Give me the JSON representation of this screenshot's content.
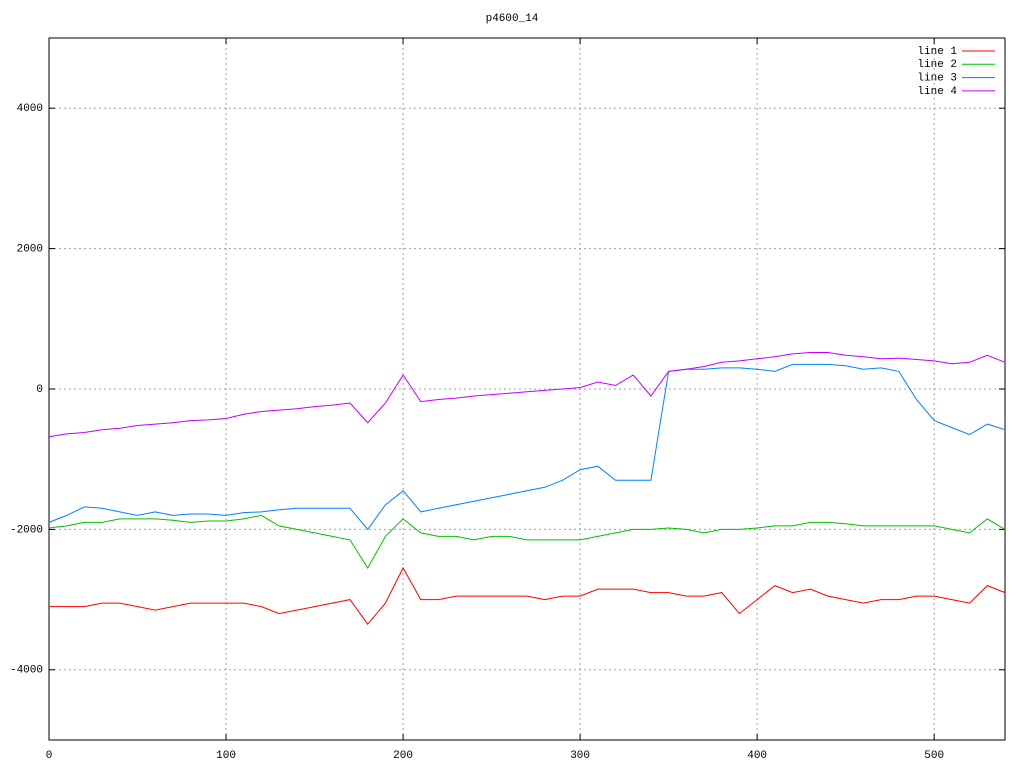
{
  "chart_data": {
    "type": "line",
    "title": "p4600_14",
    "x": [
      0,
      10,
      20,
      30,
      40,
      50,
      60,
      70,
      80,
      90,
      100,
      110,
      120,
      130,
      140,
      150,
      160,
      170,
      180,
      190,
      200,
      210,
      220,
      230,
      240,
      250,
      260,
      270,
      280,
      290,
      300,
      310,
      320,
      330,
      340,
      350,
      360,
      370,
      380,
      390,
      400,
      410,
      420,
      430,
      440,
      450,
      460,
      470,
      480,
      490,
      500,
      510,
      520,
      530,
      540
    ],
    "series": [
      {
        "name": "line 1",
        "color": "#ff0000",
        "values": [
          -3100,
          -3100,
          -3100,
          -3050,
          -3050,
          -3100,
          -3150,
          -3100,
          -3050,
          -3050,
          -3050,
          -3050,
          -3100,
          -3200,
          -3150,
          -3100,
          -3050,
          -3000,
          -3350,
          -3050,
          -2550,
          -3000,
          -3000,
          -2950,
          -2950,
          -2950,
          -2950,
          -2950,
          -3000,
          -2950,
          -2950,
          -2850,
          -2850,
          -2850,
          -2900,
          -2900,
          -2950,
          -2950,
          -2900,
          -3200,
          -3000,
          -2800,
          -2900,
          -2850,
          -2950,
          -3000,
          -3050,
          -3000,
          -3000,
          -2950,
          -2950,
          -3000,
          -3050,
          -2800,
          -2900
        ]
      },
      {
        "name": "line 2",
        "color": "#00c000",
        "values": [
          -1980,
          -1950,
          -1900,
          -1900,
          -1850,
          -1850,
          -1850,
          -1870,
          -1900,
          -1880,
          -1880,
          -1850,
          -1800,
          -1950,
          -2000,
          -2050,
          -2100,
          -2150,
          -2550,
          -2100,
          -1850,
          -2050,
          -2100,
          -2100,
          -2150,
          -2100,
          -2100,
          -2150,
          -2150,
          -2150,
          -2150,
          -2100,
          -2050,
          -2000,
          -2000,
          -1980,
          -2000,
          -2050,
          -2000,
          -2000,
          -1980,
          -1950,
          -1950,
          -1900,
          -1900,
          -1920,
          -1950,
          -1950,
          -1950,
          -1950,
          -1950,
          -2000,
          -2050,
          -1850,
          -2000
        ]
      },
      {
        "name": "line 3",
        "color": "#0080ff",
        "values": [
          -1900,
          -1800,
          -1680,
          -1700,
          -1750,
          -1800,
          -1750,
          -1800,
          -1780,
          -1780,
          -1800,
          -1760,
          -1750,
          -1720,
          -1700,
          -1700,
          -1700,
          -1700,
          -2000,
          -1650,
          -1450,
          -1750,
          -1700,
          -1650,
          -1600,
          -1550,
          -1500,
          -1450,
          -1400,
          -1300,
          -1150,
          -1100,
          -1300,
          -1300,
          -1300,
          250,
          280,
          280,
          300,
          300,
          280,
          250,
          350,
          350,
          350,
          330,
          280,
          300,
          250,
          -150,
          -450,
          -550,
          -650,
          -500,
          -580
        ]
      },
      {
        "name": "line 4",
        "color": "#c000ff",
        "values": [
          -680,
          -640,
          -620,
          -580,
          -560,
          -520,
          -500,
          -480,
          -450,
          -440,
          -420,
          -360,
          -320,
          -300,
          -280,
          -250,
          -230,
          -200,
          -480,
          -200,
          200,
          -180,
          -150,
          -130,
          -100,
          -80,
          -60,
          -40,
          -20,
          0,
          20,
          100,
          50,
          200,
          -100,
          250,
          280,
          320,
          380,
          400,
          430,
          460,
          500,
          520,
          520,
          480,
          460,
          430,
          440,
          420,
          400,
          360,
          380,
          480,
          380
        ]
      }
    ],
    "xlim": [
      0,
      540
    ],
    "ylim": [
      -5000,
      5000
    ],
    "xticks": [
      0,
      100,
      200,
      300,
      400,
      500
    ],
    "yticks": [
      -4000,
      -2000,
      0,
      2000,
      4000
    ],
    "grid": true,
    "legend": "top-right"
  }
}
